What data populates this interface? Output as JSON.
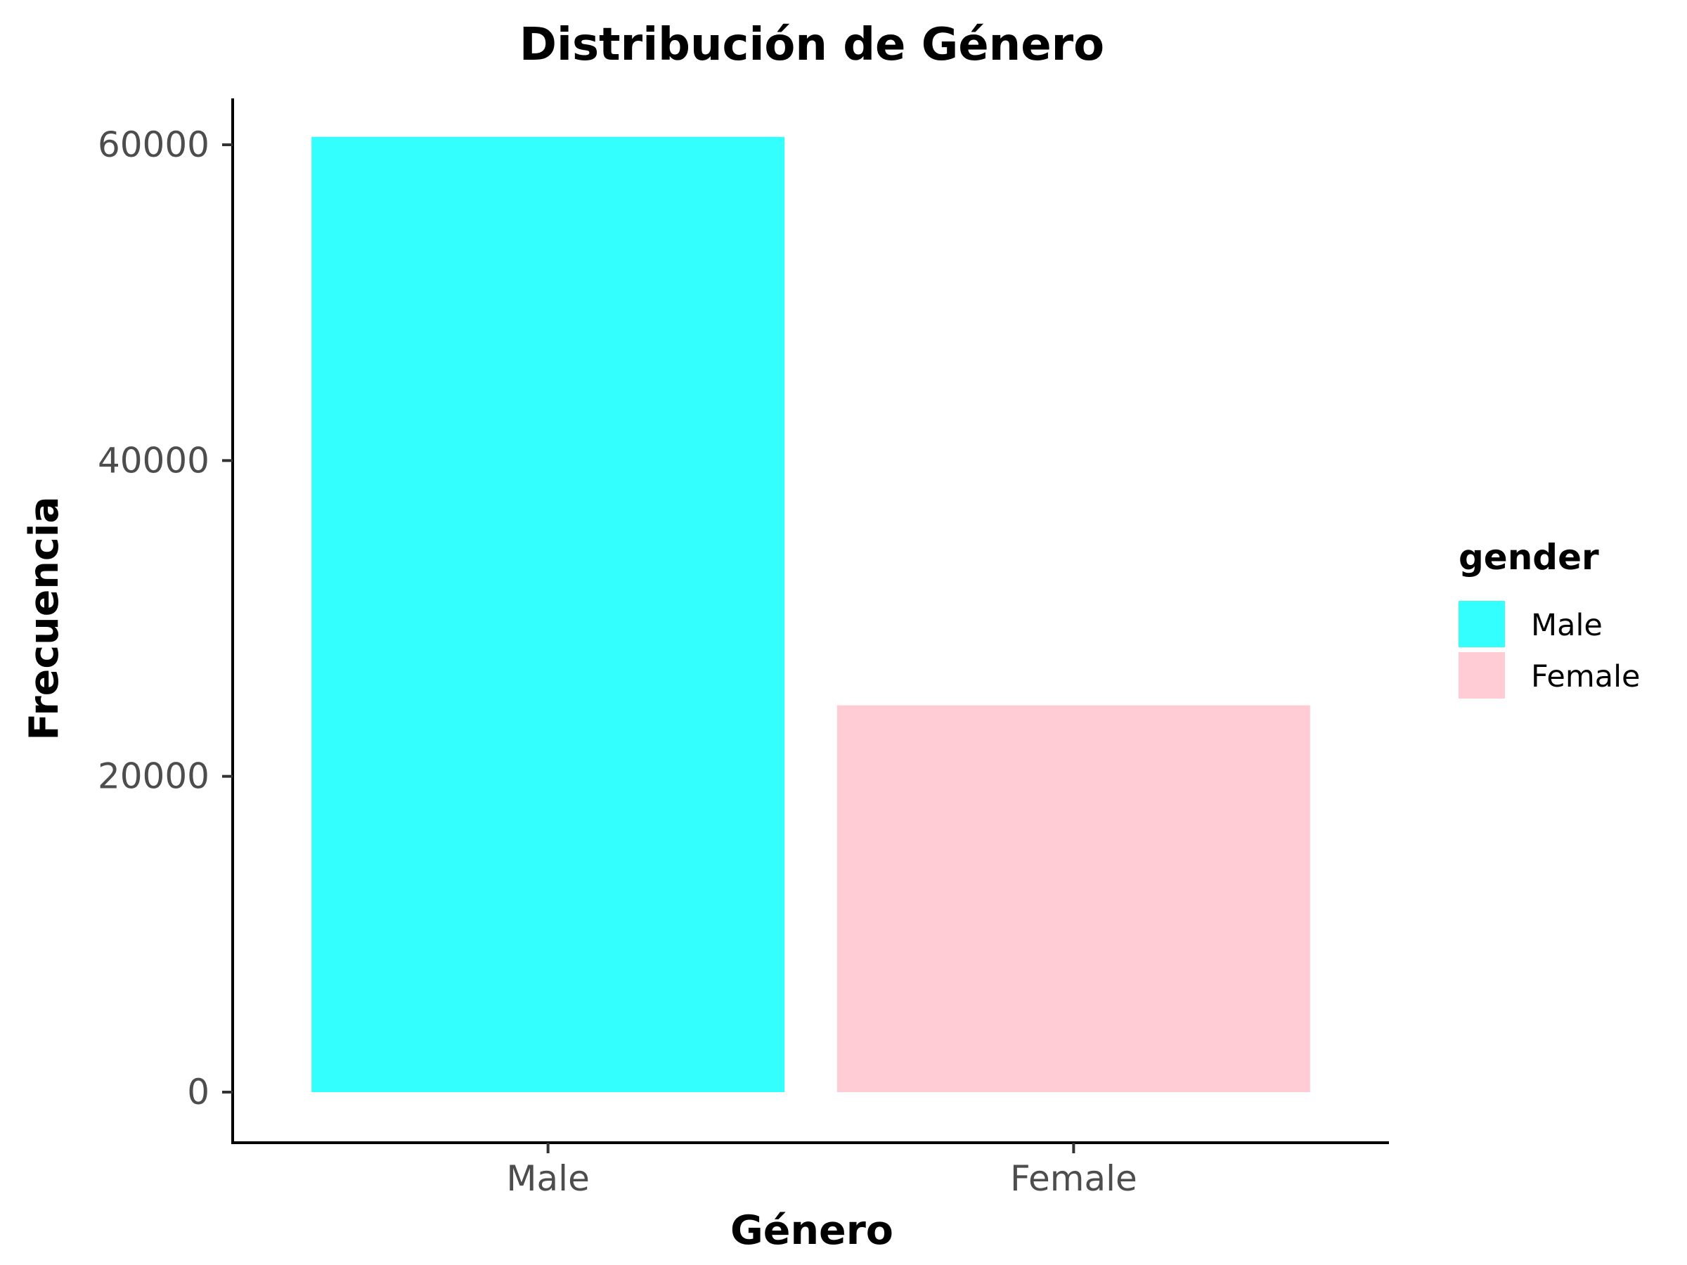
{
  "chart_data": {
    "type": "bar",
    "title": "Distribución de Género",
    "xlabel": "Género",
    "ylabel": "Frecuencia",
    "categories": [
      "Male",
      "Female"
    ],
    "values": [
      60500,
      24500
    ],
    "colors": [
      "#33ffff",
      "#ffccd6"
    ],
    "ylim": [
      -3000,
      63500
    ],
    "yticks": [
      0,
      20000,
      40000,
      60000
    ],
    "ytick_labels": [
      "0",
      "20000",
      "40000",
      "60000"
    ],
    "grid": false,
    "legend": {
      "title": "gender",
      "position": "right",
      "items": [
        "Male",
        "Female"
      ]
    }
  }
}
